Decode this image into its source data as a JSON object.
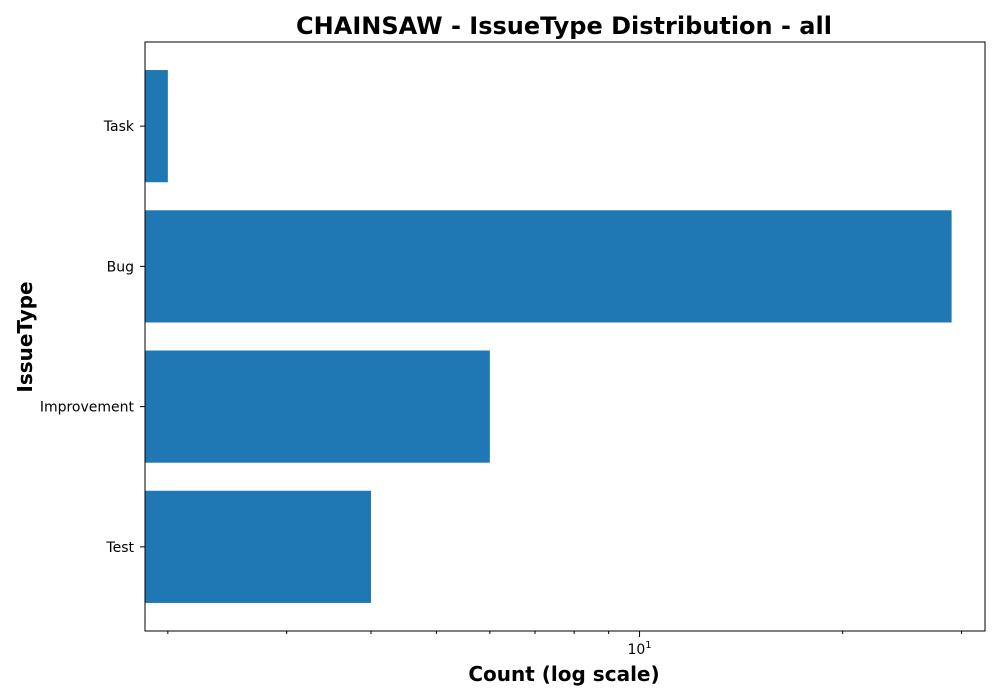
{
  "chart_data": {
    "type": "bar",
    "orientation": "horizontal",
    "title": "CHAINSAW - IssueType Distribution - all",
    "xlabel": "Count (log scale)",
    "ylabel": "IssueType",
    "xscale": "log",
    "xlim": [
      1.85,
      32.5
    ],
    "categories": [
      "Task",
      "Bug",
      "Improvement",
      "Test"
    ],
    "values": [
      2,
      29,
      6,
      4
    ],
    "x_major_ticks": [
      {
        "value": 10,
        "base": "10",
        "exponent": "1"
      }
    ],
    "x_minor_ticks": [
      2,
      3,
      4,
      5,
      6,
      7,
      8,
      9,
      20,
      30
    ],
    "grid": false,
    "legend": "none",
    "bar_color": "#1f77b4"
  }
}
